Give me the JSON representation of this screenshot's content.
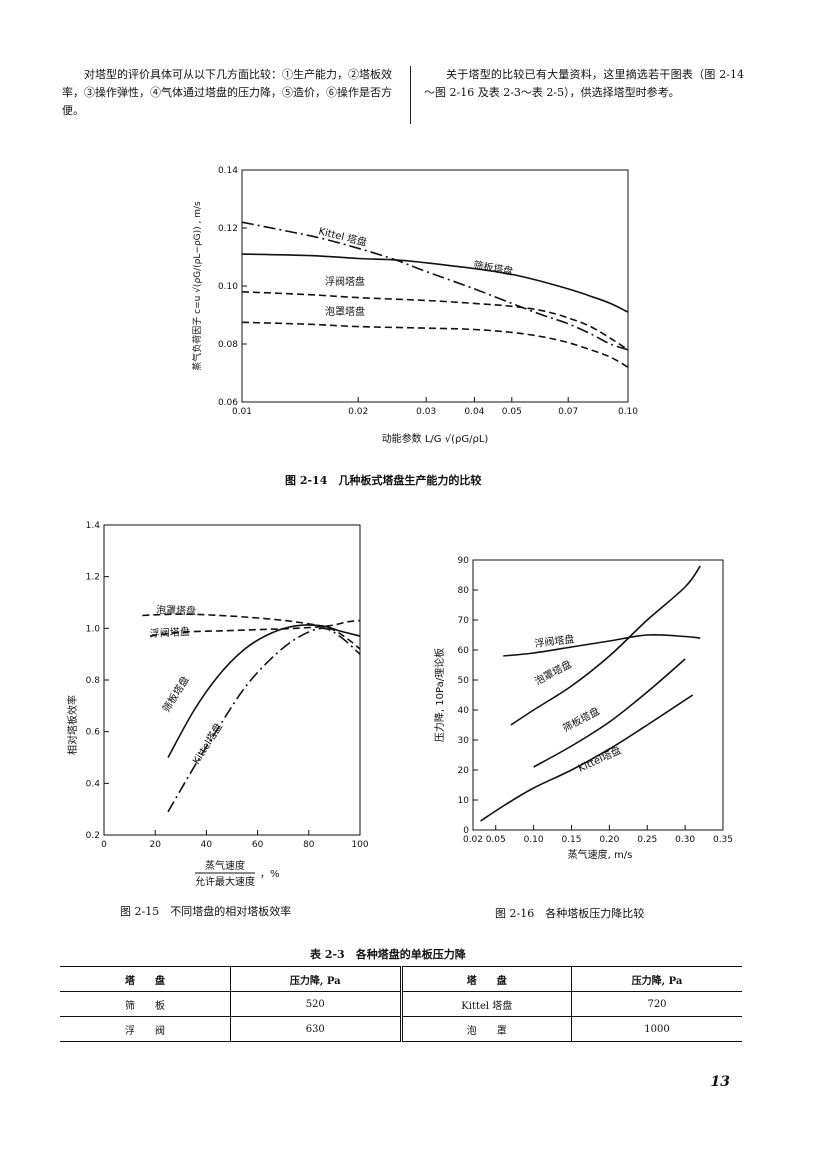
{
  "text": {
    "left_para": "对塔型的评价具体可从以下几方面比较：①生产能力，②塔板效率，③操作弹性，④气体通过塔盘的压力降，⑤造价，⑥操作是否方便。",
    "right_para": "关于塔型的比较已有大量资料，这里摘选若干图表（图 2-14～图 2-16 及表 2-3～表 2-5），供选择塔型时参考。"
  },
  "fig14": {
    "caption": "图 2-14　几种板式塔盘生产能力的比较",
    "ylabel": "蒸气负荷因子 c=u √(ρG/(ρL−ρG)) , m/s",
    "xlabel": "动能参数 L/G √(ρG/ρL)",
    "yticks": [
      "0.14",
      "0.12",
      "0.10",
      "0.08",
      "0.06"
    ],
    "xticks": [
      "0.01",
      "0.02",
      "0.03",
      "0.04",
      "0.05",
      "0.07",
      "0.10"
    ],
    "labels": [
      "Kittel 塔盘",
      "筛板塔盘",
      "浮阀塔盘",
      "泡罩塔盘"
    ]
  },
  "fig15": {
    "caption": "图 2-15　不同塔盘的相对塔板效率",
    "ylabel": "相对塔板效率",
    "xlabel_num": "蒸气速度",
    "xlabel_den": "允许最大速度",
    "xlabel_unit": "，%",
    "yticks": [
      "1.4",
      "1.2",
      "1.0",
      "0.8",
      "0.6",
      "0.4",
      "0.2"
    ],
    "xticks": [
      "0",
      "20",
      "40",
      "60",
      "80",
      "100"
    ],
    "labels": [
      "泡罩塔盘",
      "浮阀塔盘",
      "筛板塔盘",
      "Kittel塔盘"
    ]
  },
  "fig16": {
    "caption": "图 2-16　各种塔板压力降比较",
    "ylabel": "压力降, 10Pa/理论板",
    "xlabel": "蒸气速度, m/s",
    "yticks": [
      "90",
      "80",
      "70",
      "60",
      "50",
      "40",
      "30",
      "20",
      "10",
      "0"
    ],
    "xticks": [
      "0.02",
      "0.05",
      "0.10",
      "0.15",
      "0.20",
      "0.25",
      "0.30",
      "0.35"
    ],
    "labels": [
      "浮阀塔盘",
      "泡罩塔盘",
      "筛板塔盘",
      "Kittel塔盘"
    ]
  },
  "table": {
    "title": "表 2-3　各种塔盘的单板压力降",
    "headers": [
      "塔　　盘",
      "压力降, Pa",
      "塔　　盘",
      "压力降, Pa"
    ],
    "rows": [
      [
        "筛　　板",
        "520",
        "Kittel 塔盘",
        "720"
      ],
      [
        "浮　　阀",
        "630",
        "泡　　罩",
        "1000"
      ]
    ]
  },
  "page_number": "13",
  "chart_data": [
    {
      "type": "line",
      "title": "图 2-14　几种板式塔盘生产能力的比较",
      "xlabel": "动能参数 L/G √(ρG/ρL)",
      "ylabel": "蒸气负荷因子 c, m/s",
      "xscale": "log",
      "xlim": [
        0.01,
        0.1
      ],
      "ylim": [
        0.06,
        0.14
      ],
      "series": [
        {
          "name": "Kittel 塔盘",
          "x": [
            0.01,
            0.013,
            0.016,
            0.02,
            0.025,
            0.03,
            0.04,
            0.05,
            0.06,
            0.07,
            0.08,
            0.09,
            0.1
          ],
          "y": [
            0.122,
            0.119,
            0.1165,
            0.113,
            0.109,
            0.105,
            0.099,
            0.094,
            0.09,
            0.087,
            0.0835,
            0.08,
            0.078
          ]
        },
        {
          "name": "筛板塔盘",
          "x": [
            0.01,
            0.015,
            0.02,
            0.025,
            0.03,
            0.04,
            0.05,
            0.06,
            0.07,
            0.08,
            0.09,
            0.1
          ],
          "y": [
            0.111,
            0.1105,
            0.1095,
            0.109,
            0.108,
            0.106,
            0.104,
            0.1015,
            0.099,
            0.0965,
            0.094,
            0.091
          ]
        },
        {
          "name": "浮阀塔盘",
          "x": [
            0.01,
            0.015,
            0.02,
            0.03,
            0.04,
            0.05,
            0.06,
            0.07,
            0.08,
            0.09,
            0.1
          ],
          "y": [
            0.098,
            0.097,
            0.096,
            0.095,
            0.094,
            0.093,
            0.0915,
            0.089,
            0.086,
            0.082,
            0.078
          ]
        },
        {
          "name": "泡罩塔盘",
          "x": [
            0.01,
            0.015,
            0.02,
            0.03,
            0.04,
            0.05,
            0.06,
            0.07,
            0.08,
            0.09,
            0.1
          ],
          "y": [
            0.0875,
            0.0868,
            0.086,
            0.0855,
            0.085,
            0.084,
            0.0825,
            0.0805,
            0.078,
            0.0755,
            0.072
          ]
        }
      ]
    },
    {
      "type": "line",
      "title": "图 2-15　不同塔盘的相对塔板效率",
      "xlabel": "蒸气速度 / 允许最大速度，%",
      "ylabel": "相对塔板效率",
      "xlim": [
        0,
        100
      ],
      "ylim": [
        0.2,
        1.4
      ],
      "series": [
        {
          "name": "泡罩塔盘",
          "x": [
            15,
            30,
            45,
            60,
            75,
            88,
            95,
            100
          ],
          "y": [
            1.05,
            1.055,
            1.05,
            1.04,
            1.025,
            1.0,
            0.96,
            0.92
          ]
        },
        {
          "name": "浮阀塔盘",
          "x": [
            18,
            30,
            45,
            60,
            75,
            88,
            95,
            100
          ],
          "y": [
            0.97,
            0.985,
            0.99,
            0.995,
            1.0,
            1.01,
            1.025,
            1.03
          ]
        },
        {
          "name": "筛板塔盘",
          "x": [
            25,
            35,
            45,
            55,
            65,
            75,
            85,
            92,
            100
          ],
          "y": [
            0.5,
            0.68,
            0.82,
            0.92,
            0.98,
            1.01,
            1.01,
            0.99,
            0.97
          ]
        },
        {
          "name": "Kittel塔盘",
          "x": [
            25,
            35,
            45,
            55,
            65,
            75,
            85,
            92,
            100
          ],
          "y": [
            0.29,
            0.46,
            0.62,
            0.77,
            0.88,
            0.96,
            1.0,
            0.97,
            0.9
          ]
        }
      ]
    },
    {
      "type": "line",
      "title": "图 2-16　各种塔板压力降比较",
      "xlabel": "蒸气速度, m/s",
      "ylabel": "压力降, 10Pa/理论板",
      "xlim": [
        0.02,
        0.35
      ],
      "ylim": [
        0,
        90
      ],
      "series": [
        {
          "name": "浮阀塔盘",
          "x": [
            0.06,
            0.1,
            0.15,
            0.2,
            0.25,
            0.3,
            0.32
          ],
          "y": [
            58,
            59,
            61,
            63,
            65,
            64.5,
            64
          ]
        },
        {
          "name": "泡罩塔盘",
          "x": [
            0.07,
            0.1,
            0.15,
            0.2,
            0.25,
            0.3,
            0.32
          ],
          "y": [
            35,
            40,
            48,
            58,
            70,
            81,
            88
          ]
        },
        {
          "name": "筛板塔盘",
          "x": [
            0.1,
            0.15,
            0.2,
            0.25,
            0.3
          ],
          "y": [
            21,
            28,
            36,
            46,
            57
          ]
        },
        {
          "name": "Kittel塔盘",
          "x": [
            0.03,
            0.06,
            0.1,
            0.15,
            0.2,
            0.25,
            0.31
          ],
          "y": [
            3,
            8,
            14,
            20,
            27,
            35,
            45
          ]
        }
      ]
    }
  ]
}
